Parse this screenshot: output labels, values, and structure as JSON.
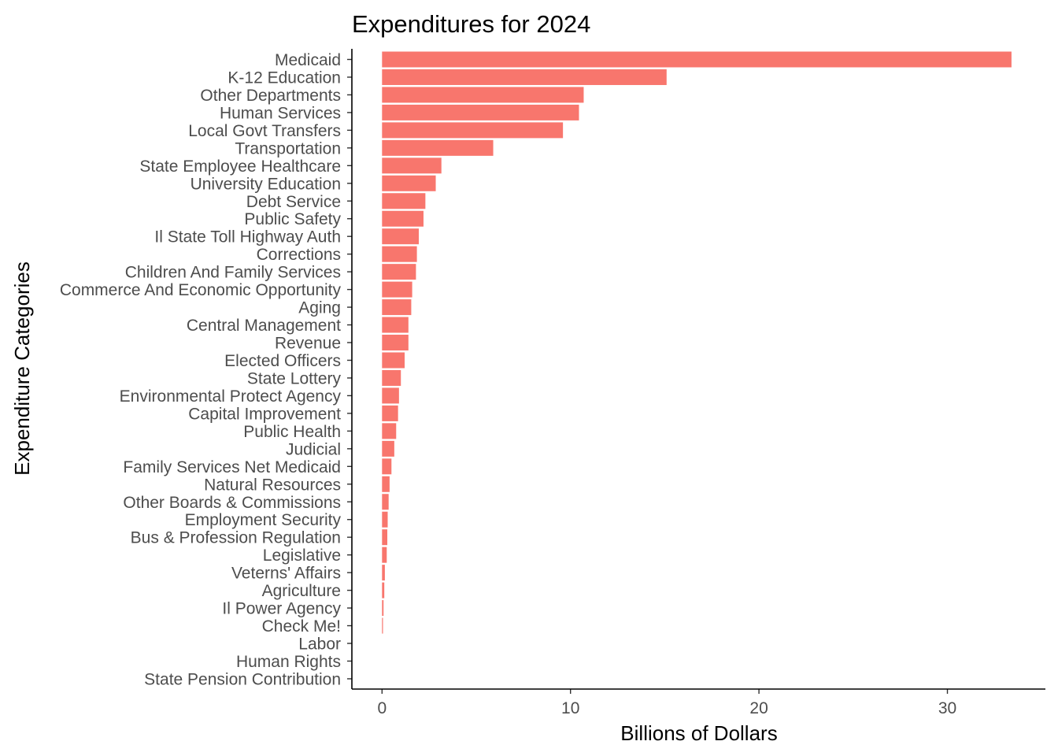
{
  "chart_data": {
    "type": "bar",
    "orientation": "horizontal",
    "title": "Expenditures for 2024",
    "xlabel": "Billions of Dollars",
    "ylabel": "Expenditure Categories",
    "xlim": [
      -1.6,
      35.2
    ],
    "x_ticks": [
      0,
      10,
      20,
      30
    ],
    "x_tick_labels": [
      "0",
      "10",
      "20",
      "30"
    ],
    "grid": false,
    "legend": "none",
    "bar_color": "#F8766D",
    "categories": [
      "Medicaid",
      "K-12 Education",
      "Other Departments",
      "Human Services",
      "Local Govt Transfers",
      "Transportation",
      "State Employee Healthcare",
      "University Education",
      "Debt Service",
      "Public Safety",
      "Il State Toll Highway Auth",
      "Corrections",
      "Children And Family Services",
      "Commerce And Economic Opportunity",
      "Aging",
      "Central Management",
      "Revenue",
      "Elected Officers",
      "State Lottery",
      "Environmental Protect Agency",
      "Capital Improvement",
      "Public Health",
      "Judicial",
      "Family Services Net Medicaid",
      "Natural Resources",
      "Other Boards & Commissions",
      "Employment Security",
      "Bus & Profession Regulation",
      "Legislative",
      "Veterns' Affairs",
      "Agriculture",
      "Il Power Agency",
      "Check Me!",
      "Labor",
      "Human Rights",
      "State Pension Contribution"
    ],
    "values": [
      33.4,
      15.1,
      10.7,
      10.45,
      9.6,
      5.9,
      3.15,
      2.85,
      2.3,
      2.2,
      1.95,
      1.85,
      1.8,
      1.6,
      1.55,
      1.4,
      1.4,
      1.2,
      1.0,
      0.9,
      0.85,
      0.75,
      0.65,
      0.5,
      0.4,
      0.35,
      0.3,
      0.28,
      0.25,
      0.15,
      0.12,
      0.08,
      0.05,
      0.0,
      0.0,
      0.0
    ]
  }
}
